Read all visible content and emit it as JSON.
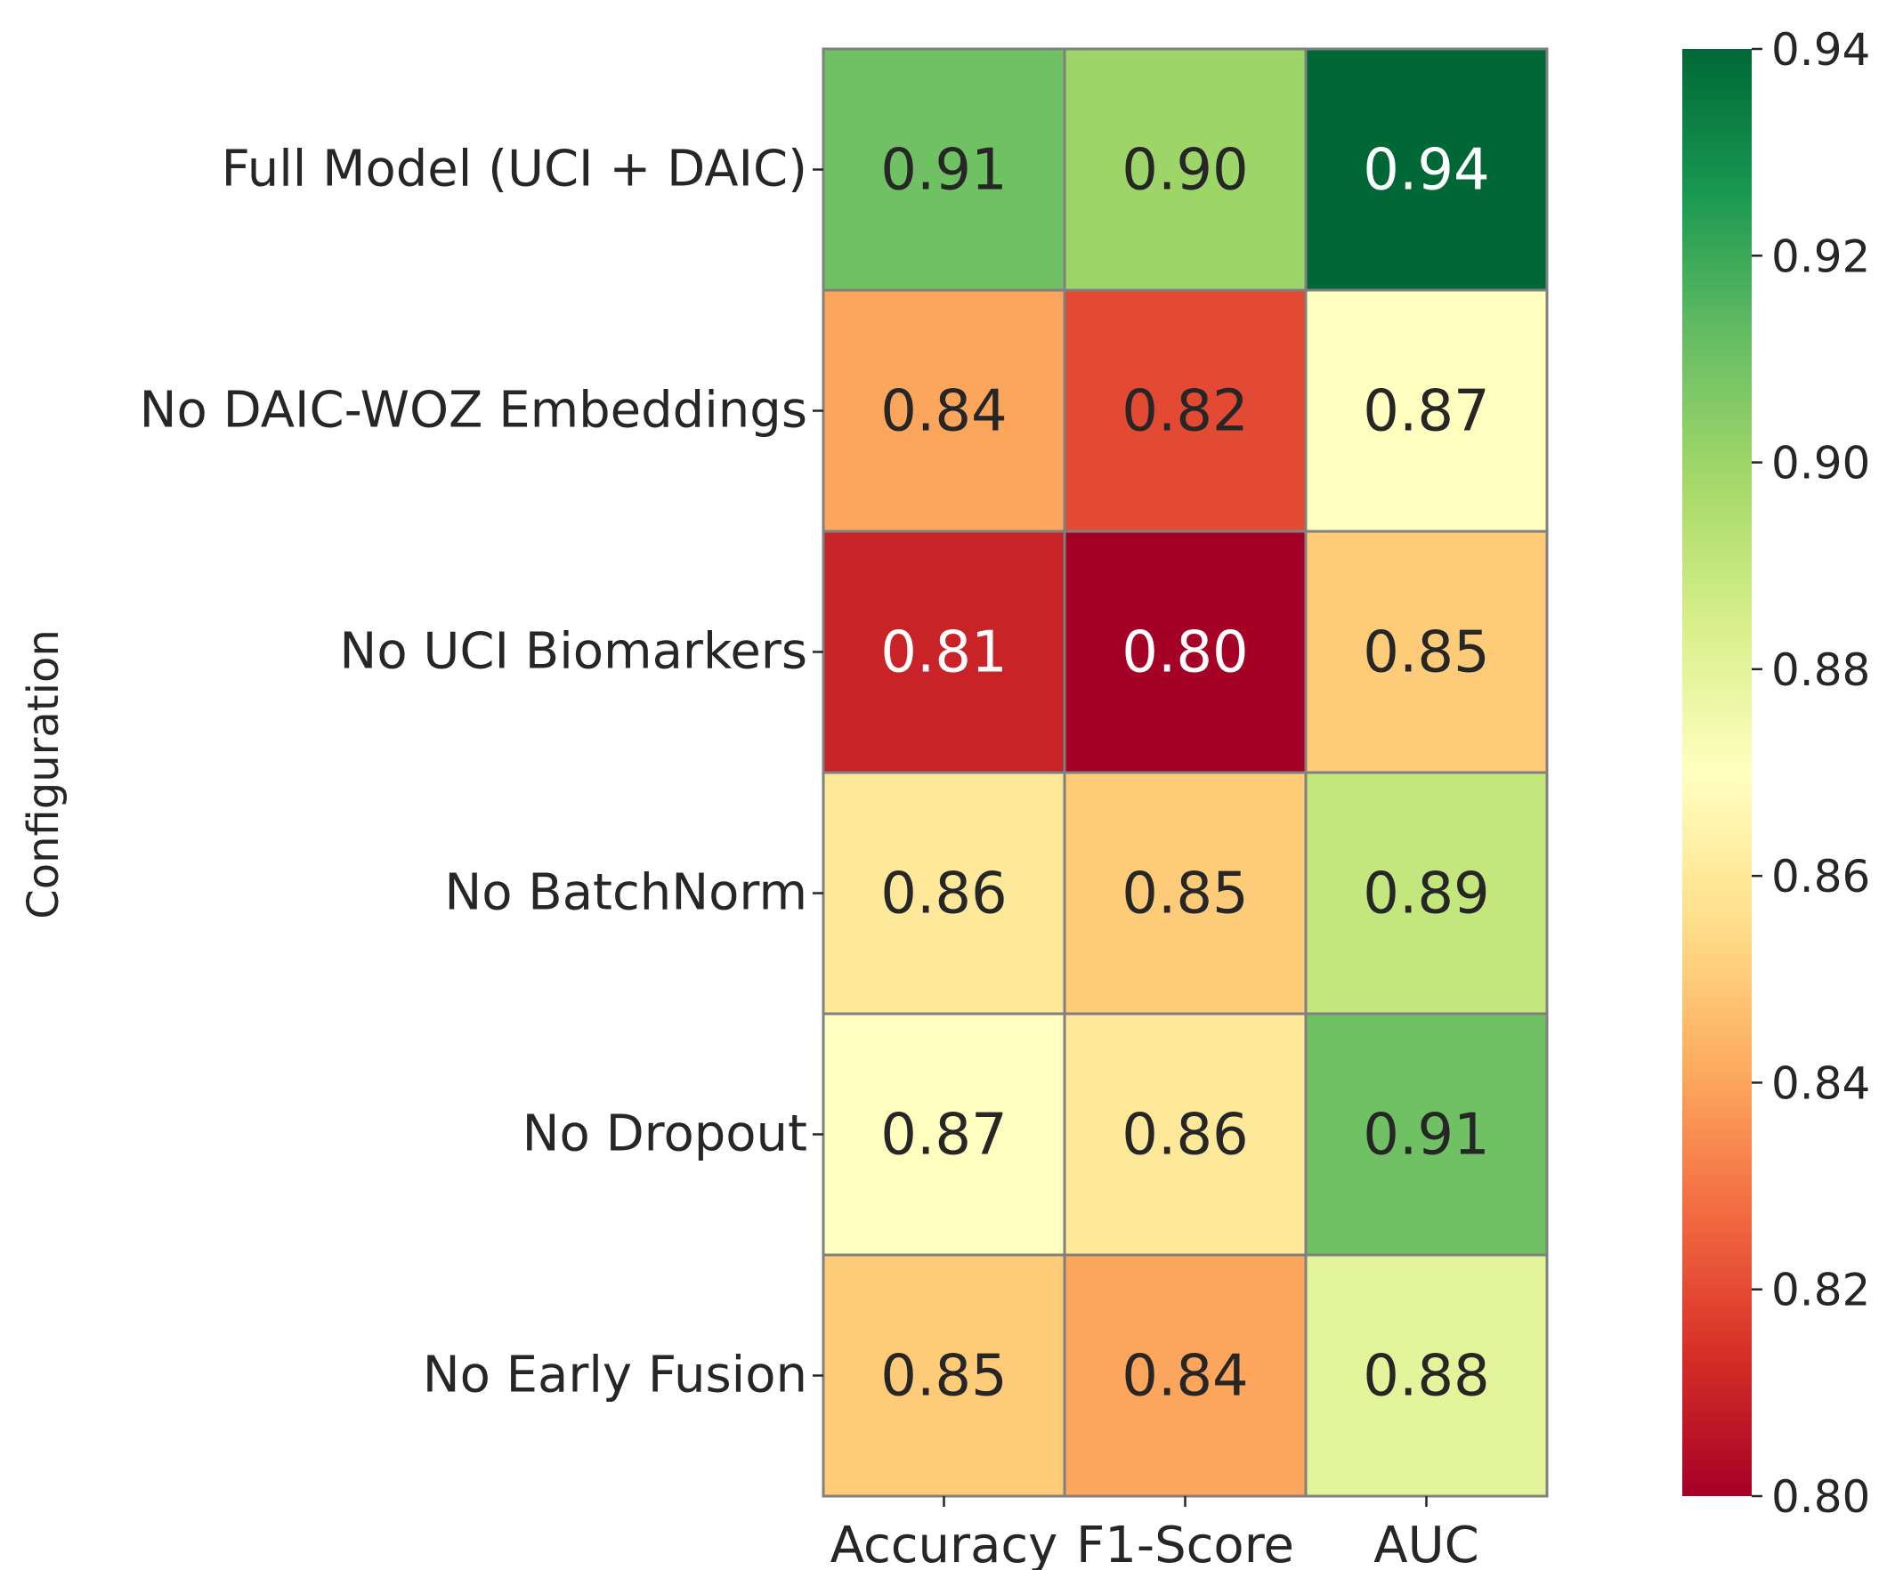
{
  "chart_data": {
    "type": "heatmap",
    "ylabel": "Configuration",
    "xlabel": "",
    "columns": [
      "Accuracy",
      "F1-Score",
      "AUC"
    ],
    "rows": [
      "Full Model (UCI + DAIC)",
      "No DAIC-WOZ Embeddings",
      "No UCI Biomarkers",
      "No BatchNorm",
      "No Dropout",
      "No Early Fusion"
    ],
    "values": [
      [
        0.91,
        0.9,
        0.94
      ],
      [
        0.84,
        0.82,
        0.87
      ],
      [
        0.81,
        0.8,
        0.85
      ],
      [
        0.86,
        0.85,
        0.89
      ],
      [
        0.87,
        0.86,
        0.91
      ],
      [
        0.85,
        0.84,
        0.88
      ]
    ],
    "value_labels": [
      [
        "0.91",
        "0.90",
        "0.94"
      ],
      [
        "0.84",
        "0.82",
        "0.87"
      ],
      [
        "0.81",
        "0.80",
        "0.85"
      ],
      [
        "0.86",
        "0.85",
        "0.89"
      ],
      [
        "0.87",
        "0.86",
        "0.91"
      ],
      [
        "0.85",
        "0.84",
        "0.88"
      ]
    ],
    "colorbar": {
      "range": [
        0.8,
        0.94
      ],
      "ticks": [
        0.8,
        0.82,
        0.84,
        0.86,
        0.88,
        0.9,
        0.92,
        0.94
      ],
      "tick_labels": [
        "0.80",
        "0.82",
        "0.84",
        "0.86",
        "0.88",
        "0.90",
        "0.92",
        "0.94"
      ],
      "colormap": "RdYlGn"
    },
    "colors": {
      "cell_border": "#808080",
      "text_dark": "#262626",
      "text_light": "#ffffff"
    }
  }
}
